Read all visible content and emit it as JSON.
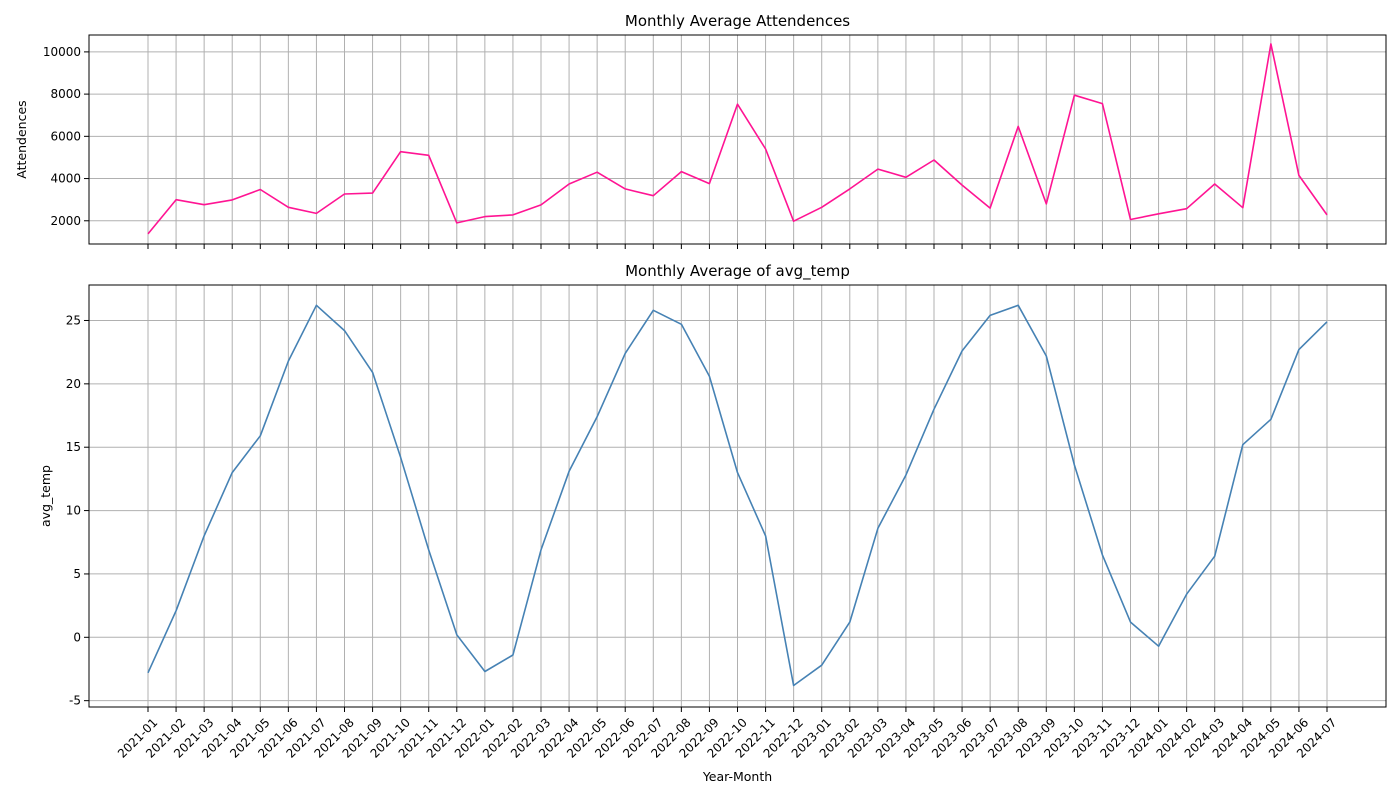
{
  "chart_data": [
    {
      "type": "line",
      "title": "Monthly Average Attendences",
      "xlabel": "",
      "ylabel": "Attendences",
      "ylim": [
        900,
        10800
      ],
      "yticks": [
        2000,
        4000,
        6000,
        8000,
        10000
      ],
      "grid": true,
      "series": [
        {
          "color": "#ff1493",
          "values": [
            1380,
            3000,
            2760,
            2990,
            3480,
            2640,
            2350,
            3270,
            3310,
            5270,
            5100,
            1900,
            2200,
            2280,
            2750,
            3740,
            4300,
            3510,
            3190,
            4330,
            3760,
            7520,
            5400,
            1980,
            2640,
            3510,
            4450,
            4060,
            4880,
            3690,
            2600,
            6470,
            2800,
            7950,
            7550,
            2060,
            2330,
            2570,
            3740,
            2620,
            10380,
            4150,
            2280
          ]
        }
      ]
    },
    {
      "type": "line",
      "title": "Monthly Average of avg_temp",
      "xlabel": "Year-Month",
      "ylabel": "avg_temp",
      "ylim": [
        -5.5,
        27.8
      ],
      "yticks": [
        -5,
        0,
        5,
        10,
        15,
        20,
        25
      ],
      "grid": true,
      "series": [
        {
          "color": "#4682b4",
          "values": [
            -2.8,
            2.1,
            8.0,
            13.0,
            15.9,
            21.8,
            26.2,
            24.2,
            20.9,
            14.2,
            6.9,
            0.2,
            -2.7,
            -1.4,
            6.9,
            13.1,
            17.4,
            22.4,
            25.8,
            24.7,
            20.6,
            13.0,
            8.0,
            -3.8,
            -2.2,
            1.2,
            8.6,
            12.8,
            18.0,
            22.6,
            25.4,
            26.2,
            22.2,
            13.6,
            6.5,
            1.2,
            -0.7,
            3.4,
            6.4,
            15.2,
            17.2,
            22.7,
            24.9
          ]
        }
      ]
    }
  ],
  "x_categories": [
    "2021-01",
    "2021-02",
    "2021-03",
    "2021-04",
    "2021-05",
    "2021-06",
    "2021-07",
    "2021-08",
    "2021-09",
    "2021-10",
    "2021-11",
    "2021-12",
    "2022-01",
    "2022-02",
    "2022-03",
    "2022-04",
    "2022-05",
    "2022-06",
    "2022-07",
    "2022-08",
    "2022-09",
    "2022-10",
    "2022-11",
    "2022-12",
    "2023-01",
    "2023-02",
    "2023-03",
    "2023-04",
    "2023-05",
    "2023-06",
    "2023-07",
    "2023-08",
    "2023-09",
    "2023-10",
    "2023-11",
    "2023-12",
    "2024-01",
    "2024-02",
    "2024-03",
    "2024-04",
    "2024-05",
    "2024-06",
    "2024-07"
  ]
}
